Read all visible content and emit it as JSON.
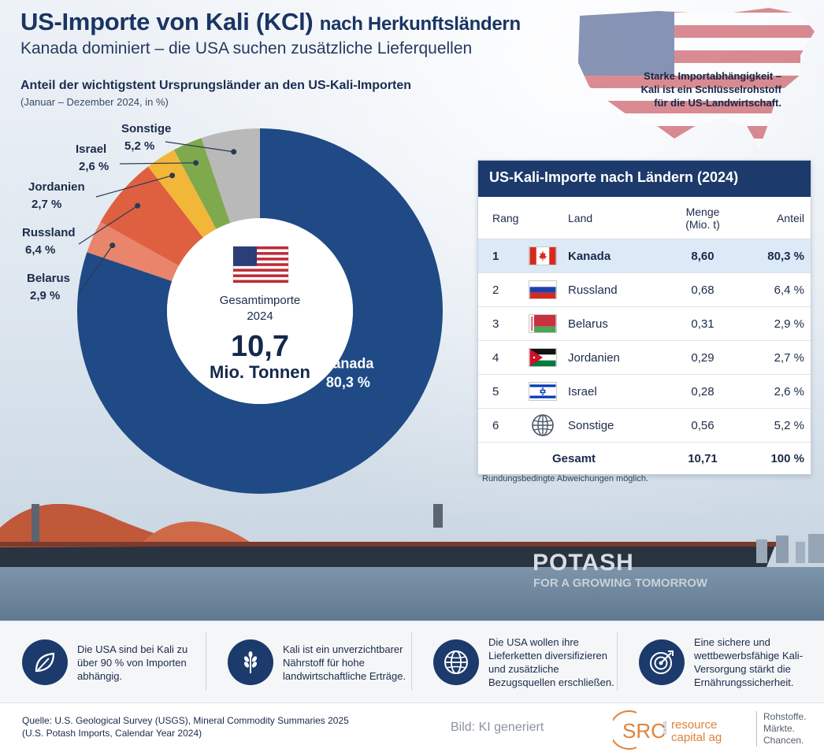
{
  "header": {
    "title_main": "US-Importe von Kali (KCl)",
    "title_rest": "nach Herkunftsländern",
    "subtitle": "Kanada dominiert – die USA suchen zusätzliche Lieferquellen"
  },
  "callout": {
    "line1": "Starke Importabhängigkeit –",
    "line2": "Kali ist ein Schlüsselrohstoff",
    "line3": "für die US-Landwirtschaft."
  },
  "ship_text": {
    "name": "POTASH",
    "slogan": "FOR A GROWING TOMORROW"
  },
  "chart_data": {
    "type": "pie",
    "title": "Anteil der wichtigstent Ursprungsländer an den US-Kali-Importen",
    "subtitle": "(Januar – Dezember 2024, in %)",
    "center": {
      "line1": "Gesamtimporte",
      "line2": "2024",
      "value": "10,7",
      "unit": "Mio. Tonnen"
    },
    "slices": [
      {
        "name": "Kanada",
        "value": 80.3,
        "label": "80,3 %",
        "color": "#1f4a85"
      },
      {
        "name": "Belarus",
        "value": 2.9,
        "label": "2,9 %",
        "color": "#e8856a"
      },
      {
        "name": "Russland",
        "value": 6.4,
        "label": "6,4 %",
        "color": "#de6040"
      },
      {
        "name": "Jordanien",
        "value": 2.7,
        "label": "2,7 %",
        "color": "#f2b638"
      },
      {
        "name": "Israel",
        "value": 2.6,
        "label": "2,6 %",
        "color": "#7fa94d"
      },
      {
        "name": "Sonstige",
        "value": 5.2,
        "label": "5,2 %",
        "color": "#b9b9b9"
      }
    ]
  },
  "table": {
    "title": "US-Kali-Importe nach Ländern (2024)",
    "columns": {
      "rang": "Rang",
      "land": "Land",
      "menge_line1": "Menge",
      "menge_line2": "(Mio. t)",
      "anteil": "Anteil"
    },
    "rows": [
      {
        "rang": "1",
        "flag": "canada-flag",
        "land": "Kanada",
        "menge": "8,60",
        "anteil": "80,3 %"
      },
      {
        "rang": "2",
        "flag": "russia-flag",
        "land": "Russland",
        "menge": "0,68",
        "anteil": "6,4 %"
      },
      {
        "rang": "3",
        "flag": "belarus-flag",
        "land": "Belarus",
        "menge": "0,31",
        "anteil": "2,9 %"
      },
      {
        "rang": "4",
        "flag": "jordan-flag",
        "land": "Jordanien",
        "menge": "0,29",
        "anteil": "2,7 %"
      },
      {
        "rang": "5",
        "flag": "israel-flag",
        "land": "Israel",
        "menge": "0,28",
        "anteil": "2,6 %"
      },
      {
        "rang": "6",
        "flag": "globe-icon",
        "land": "Sonstige",
        "menge": "0,56",
        "anteil": "5,2 %"
      }
    ],
    "total": {
      "land": "Gesamt",
      "menge": "10,71",
      "anteil": "100 %"
    },
    "note": "Rundungsbedingte Abweichungen möglich."
  },
  "facts": [
    {
      "icon": "leaf-icon",
      "text": "Die USA sind bei Kali zu über 90 % von Importen abhängig."
    },
    {
      "icon": "wheat-icon",
      "text": "Kali ist ein unverzichtbarer Nährstoff für hohe landwirtschaftliche Erträge."
    },
    {
      "icon": "globe-icon",
      "text": "Die USA wollen ihre Lieferketten diversifizieren und zusätzliche Bezugsquellen erschließen."
    },
    {
      "icon": "target-icon",
      "text": "Eine sichere und wettbewerbsfähige Kali-Versorgung stärkt die Ernährungssicherheit."
    }
  ],
  "footer": {
    "source_line1": "Quelle: U.S. Geological Survey (USGS), Mineral Commodity Summaries 2025",
    "source_line2": "(U.S. Potash Imports, Calendar Year 2024)",
    "credit": "Bild: KI generiert",
    "logo_abbr": "SRC",
    "logo_small": "swiss",
    "logo_line1": "resource",
    "logo_line2": "capital ag",
    "claim_line1": "Rohstoffe.",
    "claim_line2": "Märkte.",
    "claim_line3": "Chancen."
  },
  "colors": {
    "navy": "#1c3a6b",
    "accent_orange": "#e0833a"
  }
}
